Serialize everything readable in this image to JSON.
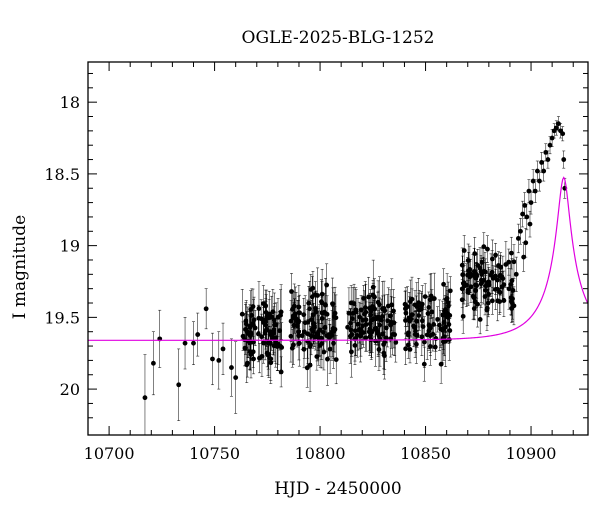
{
  "chart_data": {
    "type": "scatter",
    "title": "OGLE-2025-BLG-1252",
    "xlabel": "HJD - 2450000",
    "ylabel": "I magnitude",
    "xlim": [
      10690,
      10927
    ],
    "ylim": [
      20.32,
      17.72
    ],
    "y_inverted": true,
    "xticks": [
      10700,
      10750,
      10800,
      10850,
      10900
    ],
    "yticks": [
      18,
      18.5,
      19,
      19.5,
      20
    ],
    "grid": false,
    "legend": "none",
    "colors": {
      "points": "#000000",
      "model": "#e000e0",
      "axes": "#000000"
    },
    "series": [
      {
        "kind": "points-with-errorbars",
        "points": [
          [
            10717,
            20.06,
            0.3
          ],
          [
            10721,
            19.82,
            0.22
          ],
          [
            10724,
            19.65,
            0.2
          ],
          [
            10733,
            19.97,
            0.25
          ],
          [
            10736,
            19.68,
            0.18
          ],
          [
            10740,
            19.68,
            0.15
          ],
          [
            10742,
            19.62,
            0.15
          ],
          [
            10746,
            19.44,
            0.14
          ],
          [
            10749,
            19.79,
            0.18
          ],
          [
            10752,
            19.8,
            0.2
          ],
          [
            10754,
            19.72,
            0.18
          ],
          [
            10758,
            19.85,
            0.2
          ],
          [
            10760,
            19.92,
            0.25
          ]
        ]
      },
      {
        "kind": "points-with-errorbars",
        "generated": true,
        "segments": [
          {
            "x": [
              10763,
              10782
            ],
            "mag": 19.6,
            "scatter": 0.17,
            "n": 85,
            "err": 0.13
          },
          {
            "x": [
              10786,
              10808
            ],
            "mag": 19.57,
            "scatter": 0.17,
            "n": 95,
            "err": 0.13
          },
          {
            "x": [
              10813,
              10836
            ],
            "mag": 19.55,
            "scatter": 0.17,
            "n": 95,
            "err": 0.13
          },
          {
            "x": [
              10840,
              10862
            ],
            "mag": 19.5,
            "scatter": 0.16,
            "n": 85,
            "err": 0.12
          },
          {
            "x": [
              10866,
              10892
            ],
            "mag": 19.25,
            "scatter": 0.15,
            "n": 95,
            "err": 0.11
          }
        ]
      },
      {
        "kind": "points-with-errorbars",
        "points": [
          [
            10895,
            18.9,
            0.09
          ],
          [
            10896,
            18.78,
            0.09
          ],
          [
            10897,
            18.72,
            0.09
          ],
          [
            10898,
            18.8,
            0.09
          ],
          [
            10899,
            18.62,
            0.08
          ],
          [
            10900,
            18.7,
            0.08
          ],
          [
            10901,
            18.55,
            0.08
          ],
          [
            10902,
            18.62,
            0.08
          ],
          [
            10903,
            18.48,
            0.07
          ],
          [
            10904,
            18.55,
            0.07
          ],
          [
            10905,
            18.42,
            0.07
          ],
          [
            10906,
            18.48,
            0.07
          ],
          [
            10907,
            18.35,
            0.06
          ],
          [
            10908,
            18.4,
            0.06
          ],
          [
            10909,
            18.3,
            0.06
          ],
          [
            10910,
            18.25,
            0.06
          ],
          [
            10911,
            18.2,
            0.05
          ],
          [
            10912,
            18.18,
            0.05
          ],
          [
            10913,
            18.15,
            0.05
          ],
          [
            10914,
            18.2,
            0.05
          ],
          [
            10915,
            18.22,
            0.05
          ],
          [
            10915.5,
            18.4,
            0.06
          ],
          [
            10916,
            18.6,
            0.07
          ],
          [
            10896.5,
            19.08,
            0.1
          ],
          [
            10897.5,
            18.98,
            0.1
          ],
          [
            10899.5,
            18.85,
            0.09
          ],
          [
            10893,
            19.2,
            0.12
          ],
          [
            10894,
            18.95,
            0.1
          ]
        ]
      },
      {
        "kind": "model-curve",
        "t0": 10915.5,
        "tE": 22,
        "u0": 0.12,
        "baseline": 19.66,
        "fs": 0.25
      }
    ]
  }
}
